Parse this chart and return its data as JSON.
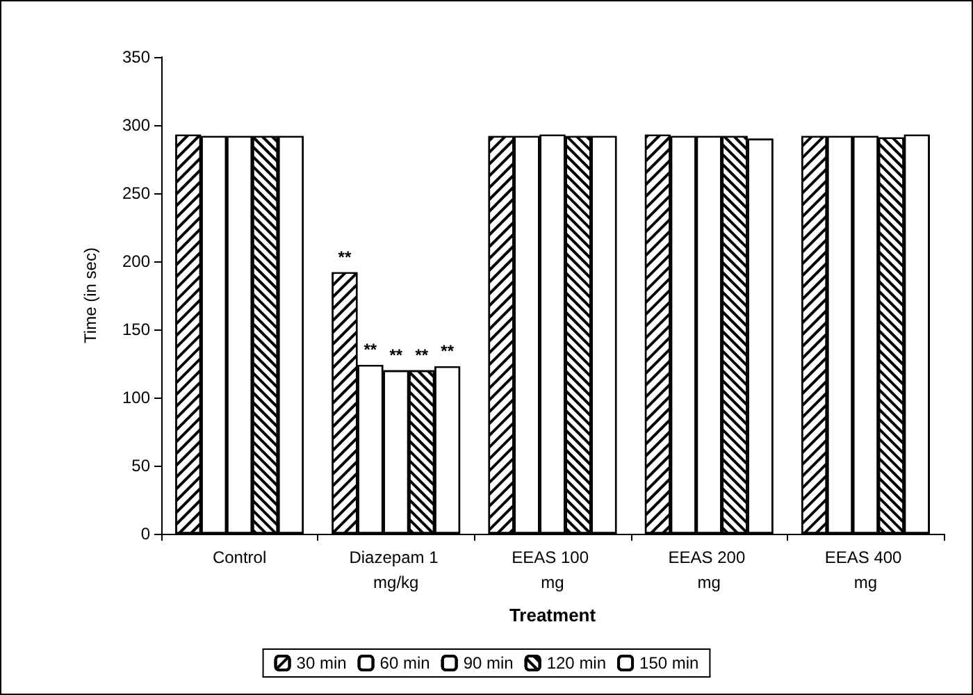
{
  "chart_data": {
    "type": "bar",
    "xlabel": "Treatment",
    "ylabel": "Time (in sec)",
    "categories": [
      "Control",
      "Diazepam 1 mg/kg",
      "EEAS 100 mg",
      "EEAS 200 mg",
      "EEAS 400 mg"
    ],
    "series": [
      {
        "name": "30 min",
        "color": "#ffffff",
        "values": [
          293,
          192,
          292,
          293,
          292
        ],
        "value_labels": [
          null,
          "**",
          null,
          null,
          null
        ]
      },
      {
        "name": "60 min",
        "color": "#ffffff",
        "values": [
          292,
          124,
          292,
          292,
          292
        ],
        "value_labels": [
          null,
          "**",
          null,
          null,
          null
        ]
      },
      {
        "name": "90 min",
        "color": "#ffffff",
        "values": [
          292,
          120,
          293,
          292,
          292
        ],
        "value_labels": [
          null,
          "**",
          null,
          null,
          null
        ]
      },
      {
        "name": "120 min",
        "color": "#ffffff",
        "values": [
          292,
          120,
          292,
          292,
          291
        ],
        "value_labels": [
          null,
          "**",
          null,
          null,
          null
        ]
      },
      {
        "name": "150 min",
        "color": "#ffffff",
        "values": [
          292,
          123,
          292,
          290,
          293
        ],
        "value_labels": [
          null,
          "**",
          null,
          null,
          null
        ]
      }
    ],
    "ylim": [
      0,
      350
    ],
    "yticks": [
      0,
      50,
      100,
      150,
      200,
      250,
      300,
      350
    ],
    "grid": false,
    "legend": "bottom"
  }
}
